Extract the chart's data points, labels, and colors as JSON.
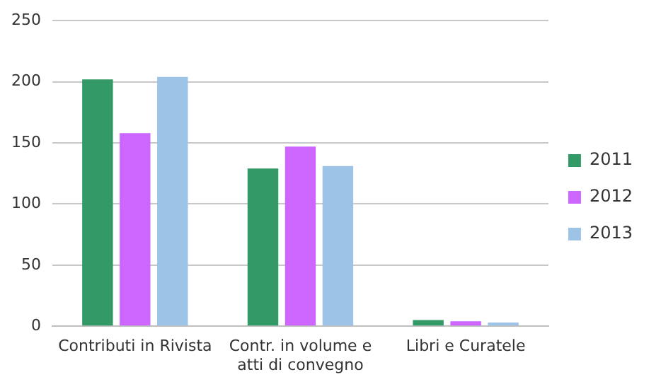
{
  "chart_data": {
    "type": "bar",
    "categories": [
      "Contributi in Rivista",
      "Contr. in volume e atti di convegno",
      "Libri e Curatele"
    ],
    "series": [
      {
        "name": "2011",
        "color": "#339966",
        "values": [
          202,
          129,
          5
        ]
      },
      {
        "name": "2012",
        "color": "#cc66ff",
        "values": [
          158,
          147,
          4
        ]
      },
      {
        "name": "2013",
        "color": "#9dc3e6",
        "values": [
          204,
          131,
          3
        ]
      }
    ],
    "ylim": [
      0,
      250
    ],
    "yticks": [
      0,
      50,
      100,
      150,
      200,
      250
    ],
    "grid": "y",
    "legend": "right"
  }
}
